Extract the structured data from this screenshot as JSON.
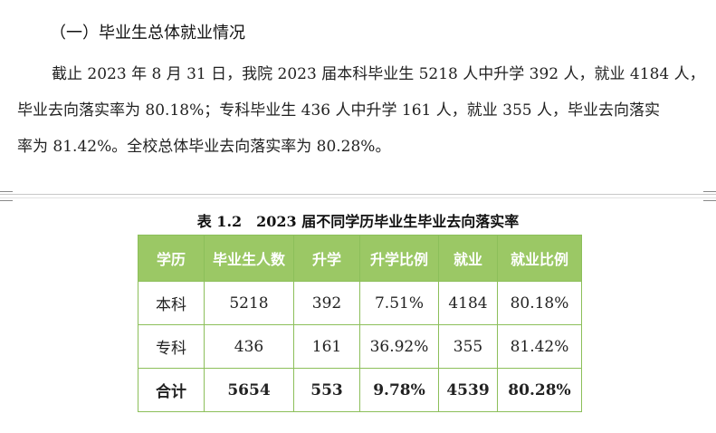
{
  "heading": "（一）毕业生总体就业情况",
  "paragraph": {
    "line1": "截止 2023 年 8 月 31 日，我院 2023 届本科毕业生 5218 人中升学 392 人，就业 4184 人，",
    "line2": "毕业去向落实率为 80.18%；专科毕业生 436 人中升学 161 人，就业 355 人，毕业去向落实",
    "line3": "率为 81.42%。全校总体毕业去向落实率为 80.28%。"
  },
  "table": {
    "caption": "表 1.2　2023 届不同学历毕业生毕业去向落实率",
    "header_color": "#9bc865",
    "border_color": "#8cbf5a",
    "columns": [
      "学历",
      "毕业生人数",
      "升学",
      "升学比例",
      "就业",
      "就业比例"
    ],
    "rows": [
      [
        "本科",
        "5218",
        "392",
        "7.51%",
        "4184",
        "80.18%"
      ],
      [
        "专科",
        "436",
        "161",
        "36.92%",
        "355",
        "81.42%"
      ],
      [
        "合计",
        "5654",
        "553",
        "9.78%",
        "4539",
        "80.28%"
      ]
    ]
  }
}
